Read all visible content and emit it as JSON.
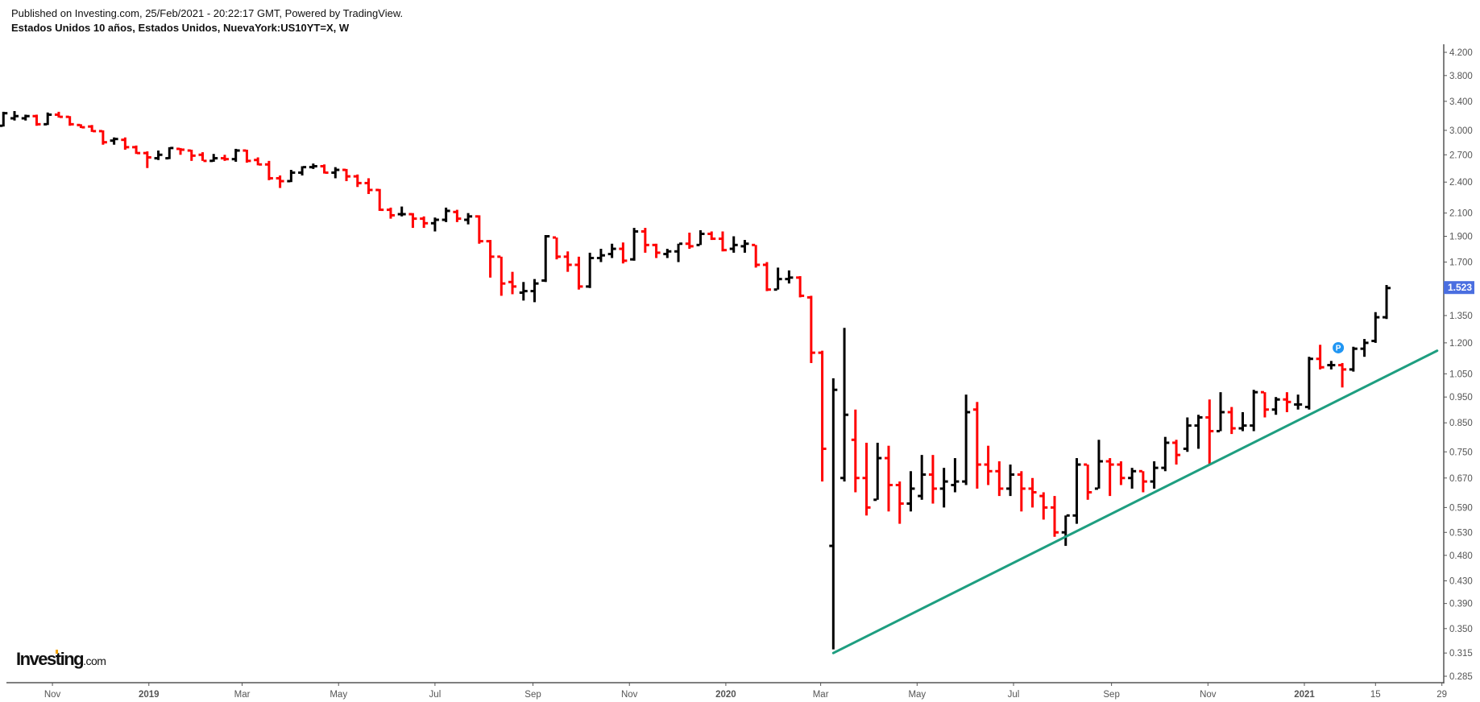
{
  "header": {
    "published": "Published on Investing.com, 25/Feb/2021 - 20:22:17 GMT, Powered by TradingView.",
    "title": "Estados Unidos 10 años, Estados Unidos, NuevaYork:US10YT=X, W"
  },
  "logo": {
    "main": "Investing",
    "suffix": ".com"
  },
  "colors": {
    "up": "#000000",
    "down": "#ff0000",
    "trendline": "#1e9e80",
    "price_label": "#4a6ee0",
    "marker": "#2196f3",
    "axis": "#555555"
  },
  "chart_data": {
    "type": "ohlc",
    "scale": "log",
    "title": "Estados Unidos 10 años, Estados Unidos, NuevaYork:US10YT=X, W",
    "interval": "weekly",
    "ylim": [
      0.285,
      4.2
    ],
    "y_ticks": [
      "4.200",
      "3.800",
      "3.400",
      "3.000",
      "2.700",
      "2.400",
      "2.100",
      "1.900",
      "1.700",
      "1.350",
      "1.200",
      "1.050",
      "0.950",
      "0.850",
      "0.750",
      "0.670",
      "0.590",
      "0.530",
      "0.480",
      "0.430",
      "0.390",
      "0.350",
      "0.315",
      "0.285"
    ],
    "x_ticks": [
      {
        "label": "Nov",
        "date": "2018-11-01"
      },
      {
        "label": "2019",
        "date": "2019-01-01"
      },
      {
        "label": "Mar",
        "date": "2019-03-01"
      },
      {
        "label": "May",
        "date": "2019-05-01"
      },
      {
        "label": "Jul",
        "date": "2019-07-01"
      },
      {
        "label": "Sep",
        "date": "2019-09-01"
      },
      {
        "label": "Nov",
        "date": "2019-11-01"
      },
      {
        "label": "2020",
        "date": "2020-01-01"
      },
      {
        "label": "Mar",
        "date": "2020-03-01"
      },
      {
        "label": "May",
        "date": "2020-05-01"
      },
      {
        "label": "Jul",
        "date": "2020-07-01"
      },
      {
        "label": "Sep",
        "date": "2020-09-01"
      },
      {
        "label": "Nov",
        "date": "2020-11-01"
      },
      {
        "label": "2021",
        "date": "2021-01-01"
      },
      {
        "label": "15",
        "date": "2021-02-15"
      },
      {
        "label": "29",
        "date": "2021-03-29"
      }
    ],
    "last_price": "1.523",
    "marker": {
      "label": "P",
      "date": "2021-01-25",
      "value": 1.175
    },
    "trendline": [
      [
        "2020-03-09",
        0.315
      ],
      [
        "2021-03-26",
        1.16
      ]
    ],
    "start_date": "2018-10-01",
    "bars": [
      [
        3.06,
        3.25,
        3.05,
        3.23
      ],
      [
        3.16,
        3.26,
        3.13,
        3.19
      ],
      [
        3.16,
        3.21,
        3.13,
        3.19
      ],
      [
        3.19,
        3.21,
        3.06,
        3.08
      ],
      [
        3.08,
        3.24,
        3.07,
        3.21
      ],
      [
        3.21,
        3.25,
        3.17,
        3.18
      ],
      [
        3.18,
        3.19,
        3.06,
        3.08
      ],
      [
        3.07,
        3.08,
        3.03,
        3.04
      ],
      [
        3.05,
        3.07,
        2.98,
        2.99
      ],
      [
        2.99,
        3.0,
        2.82,
        2.85
      ],
      [
        2.87,
        2.91,
        2.82,
        2.89
      ],
      [
        2.88,
        2.91,
        2.76,
        2.79
      ],
      [
        2.79,
        2.81,
        2.71,
        2.72
      ],
      [
        2.72,
        2.74,
        2.55,
        2.67
      ],
      [
        2.66,
        2.75,
        2.64,
        2.7
      ],
      [
        2.66,
        2.79,
        2.65,
        2.78
      ],
      [
        2.77,
        2.78,
        2.7,
        2.76
      ],
      [
        2.75,
        2.76,
        2.63,
        2.69
      ],
      [
        2.7,
        2.73,
        2.63,
        2.63
      ],
      [
        2.63,
        2.71,
        2.62,
        2.66
      ],
      [
        2.66,
        2.7,
        2.63,
        2.65
      ],
      [
        2.65,
        2.77,
        2.62,
        2.75
      ],
      [
        2.75,
        2.76,
        2.61,
        2.63
      ],
      [
        2.64,
        2.67,
        2.58,
        2.59
      ],
      [
        2.59,
        2.63,
        2.42,
        2.44
      ],
      [
        2.44,
        2.47,
        2.34,
        2.41
      ],
      [
        2.41,
        2.53,
        2.4,
        2.5
      ],
      [
        2.5,
        2.57,
        2.47,
        2.56
      ],
      [
        2.56,
        2.6,
        2.54,
        2.57
      ],
      [
        2.57,
        2.59,
        2.49,
        2.5
      ],
      [
        2.5,
        2.56,
        2.44,
        2.53
      ],
      [
        2.53,
        2.54,
        2.41,
        2.46
      ],
      [
        2.46,
        2.48,
        2.35,
        2.39
      ],
      [
        2.39,
        2.44,
        2.28,
        2.32
      ],
      [
        2.32,
        2.33,
        2.12,
        2.13
      ],
      [
        2.13,
        2.15,
        2.05,
        2.08
      ],
      [
        2.09,
        2.16,
        2.07,
        2.09
      ],
      [
        2.09,
        2.1,
        1.97,
        2.05
      ],
      [
        2.05,
        2.07,
        1.97,
        2.01
      ],
      [
        2.01,
        2.06,
        1.94,
        2.04
      ],
      [
        2.04,
        2.15,
        2.02,
        2.12
      ],
      [
        2.11,
        2.13,
        2.02,
        2.05
      ],
      [
        2.04,
        2.1,
        2.0,
        2.07
      ],
      [
        2.07,
        2.08,
        1.84,
        1.86
      ],
      [
        1.86,
        1.87,
        1.59,
        1.74
      ],
      [
        1.74,
        1.74,
        1.47,
        1.55
      ],
      [
        1.56,
        1.63,
        1.48,
        1.53
      ],
      [
        1.49,
        1.56,
        1.44,
        1.5
      ],
      [
        1.5,
        1.58,
        1.43,
        1.55
      ],
      [
        1.57,
        1.91,
        1.56,
        1.9
      ],
      [
        1.89,
        1.89,
        1.72,
        1.74
      ],
      [
        1.74,
        1.78,
        1.63,
        1.68
      ],
      [
        1.68,
        1.74,
        1.51,
        1.53
      ],
      [
        1.53,
        1.77,
        1.52,
        1.73
      ],
      [
        1.73,
        1.8,
        1.7,
        1.75
      ],
      [
        1.76,
        1.84,
        1.73,
        1.8
      ],
      [
        1.8,
        1.85,
        1.69,
        1.71
      ],
      [
        1.72,
        1.97,
        1.71,
        1.94
      ],
      [
        1.94,
        1.97,
        1.77,
        1.83
      ],
      [
        1.83,
        1.84,
        1.73,
        1.77
      ],
      [
        1.76,
        1.8,
        1.73,
        1.78
      ],
      [
        1.78,
        1.84,
        1.7,
        1.84
      ],
      [
        1.84,
        1.93,
        1.8,
        1.82
      ],
      [
        1.83,
        1.95,
        1.83,
        1.92
      ],
      [
        1.92,
        1.94,
        1.87,
        1.88
      ],
      [
        1.88,
        1.94,
        1.78,
        1.79
      ],
      [
        1.8,
        1.9,
        1.77,
        1.83
      ],
      [
        1.82,
        1.87,
        1.77,
        1.84
      ],
      [
        1.83,
        1.83,
        1.66,
        1.68
      ],
      [
        1.68,
        1.7,
        1.5,
        1.51
      ],
      [
        1.51,
        1.66,
        1.51,
        1.58
      ],
      [
        1.58,
        1.64,
        1.55,
        1.59
      ],
      [
        1.59,
        1.6,
        1.46,
        1.47
      ],
      [
        1.46,
        1.47,
        1.1,
        1.15
      ],
      [
        1.15,
        1.16,
        0.66,
        0.76
      ],
      [
        0.5,
        1.03,
        0.32,
        0.98
      ],
      [
        0.67,
        1.28,
        0.66,
        0.88
      ],
      [
        0.79,
        0.9,
        0.63,
        0.67
      ],
      [
        0.67,
        0.78,
        0.57,
        0.59
      ],
      [
        0.61,
        0.78,
        0.61,
        0.73
      ],
      [
        0.73,
        0.77,
        0.58,
        0.65
      ],
      [
        0.65,
        0.66,
        0.55,
        0.6
      ],
      [
        0.6,
        0.69,
        0.58,
        0.64
      ],
      [
        0.62,
        0.74,
        0.61,
        0.68
      ],
      [
        0.68,
        0.74,
        0.6,
        0.64
      ],
      [
        0.64,
        0.7,
        0.59,
        0.66
      ],
      [
        0.65,
        0.73,
        0.63,
        0.66
      ],
      [
        0.66,
        0.96,
        0.65,
        0.89
      ],
      [
        0.9,
        0.93,
        0.64,
        0.71
      ],
      [
        0.71,
        0.77,
        0.65,
        0.69
      ],
      [
        0.69,
        0.72,
        0.62,
        0.64
      ],
      [
        0.64,
        0.71,
        0.62,
        0.68
      ],
      [
        0.68,
        0.69,
        0.58,
        0.64
      ],
      [
        0.64,
        0.67,
        0.59,
        0.63
      ],
      [
        0.62,
        0.63,
        0.56,
        0.59
      ],
      [
        0.59,
        0.62,
        0.52,
        0.53
      ],
      [
        0.53,
        0.57,
        0.5,
        0.57
      ],
      [
        0.57,
        0.73,
        0.55,
        0.71
      ],
      [
        0.71,
        0.71,
        0.61,
        0.63
      ],
      [
        0.64,
        0.79,
        0.64,
        0.72
      ],
      [
        0.72,
        0.73,
        0.62,
        0.71
      ],
      [
        0.71,
        0.72,
        0.65,
        0.67
      ],
      [
        0.67,
        0.7,
        0.64,
        0.69
      ],
      [
        0.69,
        0.69,
        0.63,
        0.66
      ],
      [
        0.66,
        0.72,
        0.64,
        0.7
      ],
      [
        0.7,
        0.8,
        0.69,
        0.78
      ],
      [
        0.78,
        0.79,
        0.71,
        0.74
      ],
      [
        0.76,
        0.87,
        0.75,
        0.84
      ],
      [
        0.84,
        0.88,
        0.76,
        0.87
      ],
      [
        0.87,
        0.94,
        0.71,
        0.82
      ],
      [
        0.82,
        0.97,
        0.82,
        0.89
      ],
      [
        0.89,
        0.91,
        0.81,
        0.83
      ],
      [
        0.83,
        0.89,
        0.82,
        0.84
      ],
      [
        0.84,
        0.98,
        0.82,
        0.97
      ],
      [
        0.97,
        0.97,
        0.87,
        0.9
      ],
      [
        0.9,
        0.95,
        0.88,
        0.94
      ],
      [
        0.94,
        0.97,
        0.89,
        0.93
      ],
      [
        0.92,
        0.96,
        0.9,
        0.92
      ],
      [
        0.91,
        1.13,
        0.9,
        1.12
      ],
      [
        1.12,
        1.19,
        1.07,
        1.08
      ],
      [
        1.09,
        1.11,
        1.07,
        1.09
      ],
      [
        1.09,
        1.1,
        0.99,
        1.07
      ],
      [
        1.07,
        1.18,
        1.06,
        1.17
      ],
      [
        1.17,
        1.22,
        1.13,
        1.2
      ],
      [
        1.21,
        1.37,
        1.2,
        1.34
      ],
      [
        1.34,
        1.54,
        1.33,
        1.52
      ]
    ]
  }
}
